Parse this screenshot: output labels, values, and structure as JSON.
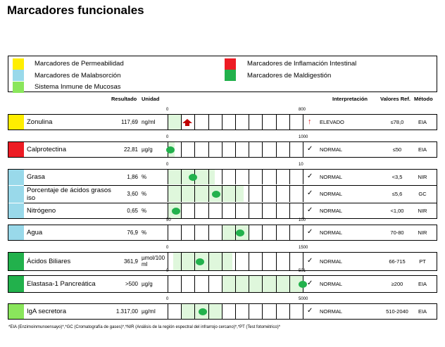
{
  "title": "Marcadores funcionales",
  "colors": {
    "permeabilidad": "#ffee00",
    "inflamacion": "#ed1c24",
    "malabsorcion": "#99d9ea",
    "maldigestion": "#22b14c",
    "inmune": "#8ae65c",
    "arrow_elevado": "#c00000"
  },
  "legend": [
    {
      "label": "Marcadores de Permeabilidad",
      "color": "#ffee00"
    },
    {
      "label": "Marcadores de Malabsorción",
      "color": "#99d9ea"
    },
    {
      "label": "Sistema Inmune de Mucosas",
      "color": "#8ae65c"
    },
    {
      "label": "Marcadores de Inflamación Intestinal",
      "color": "#ed1c24"
    },
    {
      "label": "Marcadores de Maldigestión",
      "color": "#22b14c"
    }
  ],
  "headers": {
    "resultado": "Resultado",
    "unidad": "Unidad",
    "interpretacion": "Interpretación",
    "valores_ref": "Valores Ref.",
    "metodo": "Método"
  },
  "rows": [
    {
      "name": "Zonulina",
      "result": "117,69",
      "unit": "ng/ml",
      "scale_min": "0",
      "scale_max": "800",
      "status_icon": "up-arrow-icon",
      "status": "ELEVADO",
      "ref": "≤78,0",
      "method": "EIA",
      "color": "#ffee00",
      "marker": "arrow",
      "marker_fraction": 0.147,
      "band": [
        0.0,
        0.098
      ]
    },
    {
      "name": "Calprotectina",
      "result": "22,81",
      "unit": "µg/g",
      "scale_min": "0",
      "scale_max": "1000",
      "status_icon": "check-icon",
      "status": "NORMAL",
      "ref": "≤50",
      "method": "EIA",
      "color": "#ed1c24",
      "marker": "dot",
      "marker_fraction": 0.023,
      "band": [
        0.0,
        0.05
      ]
    },
    {
      "name": "Grasa",
      "result": "1,86",
      "unit": "%",
      "scale_min": "0",
      "scale_max": "10",
      "status_icon": "check-icon",
      "status": "NORMAL",
      "ref": "<3,5",
      "method": "NIR",
      "color": "#99d9ea",
      "marker": "dot",
      "marker_fraction": 0.186,
      "band": [
        0.0,
        0.35
      ]
    },
    {
      "name": "Porcentaje de ácidos grasos iso",
      "result": "3,60",
      "unit": "%",
      "scale_min": "",
      "scale_max": "",
      "status_icon": "check-icon",
      "status": "NORMAL",
      "ref": "≤5,6",
      "method": "GC",
      "color": "#99d9ea",
      "marker": "dot",
      "marker_fraction": 0.36,
      "band": [
        0.0,
        0.56
      ]
    },
    {
      "name": "Nitrógeno",
      "result": "0,65",
      "unit": "%",
      "scale_min": "",
      "scale_max": "",
      "status_icon": "check-icon",
      "status": "NORMAL",
      "ref": "<1,00",
      "method": "NIR",
      "color": "#99d9ea",
      "marker": "dot",
      "marker_fraction": 0.065,
      "band": [
        0.0,
        0.1
      ]
    },
    {
      "name": "Agua",
      "result": "76,9",
      "unit": "%",
      "scale_min": "50",
      "scale_max": "100",
      "status_icon": "check-icon",
      "status": "NORMAL",
      "ref": "70-80",
      "method": "NIR",
      "color": "#99d9ea",
      "marker": "dot",
      "marker_fraction": 0.538,
      "band": [
        0.4,
        0.6
      ]
    },
    {
      "name": "Ácidos Biliares",
      "result": "361,9",
      "unit": "µmol/100 ml",
      "scale_min": "0",
      "scale_max": "1500",
      "status_icon": "check-icon",
      "status": "NORMAL",
      "ref": "66-715",
      "method": "PT",
      "color": "#22b14c",
      "marker": "dot",
      "marker_fraction": 0.241,
      "band": [
        0.044,
        0.477
      ]
    },
    {
      "name": "Elastasa-1 Pancreática",
      "result": ">500",
      "unit": "µg/g",
      "scale_min": "0",
      "scale_max": "501",
      "status_icon": "check-icon",
      "status": "NORMAL",
      "ref": "≥200",
      "method": "EIA",
      "color": "#22b14c",
      "marker": "dot",
      "marker_fraction": 0.998,
      "band": [
        0.4,
        1.0
      ]
    },
    {
      "name": "IgA secretora",
      "result": "1.317,00",
      "unit": "µg/ml",
      "scale_min": "0",
      "scale_max": "5000",
      "status_icon": "check-icon",
      "status": "NORMAL",
      "ref": "510-2040",
      "method": "EIA",
      "color": "#8ae65c",
      "marker": "dot",
      "marker_fraction": 0.263,
      "band": [
        0.102,
        0.408
      ]
    }
  ],
  "footnote": "*EIA (Enzimoinmunoensayo)*,*GC (Cromatografía de gases)*,*NIR (Análisis de la región espectral del infrarrojo cercano)*,*PT (Test fotométrico)*"
}
